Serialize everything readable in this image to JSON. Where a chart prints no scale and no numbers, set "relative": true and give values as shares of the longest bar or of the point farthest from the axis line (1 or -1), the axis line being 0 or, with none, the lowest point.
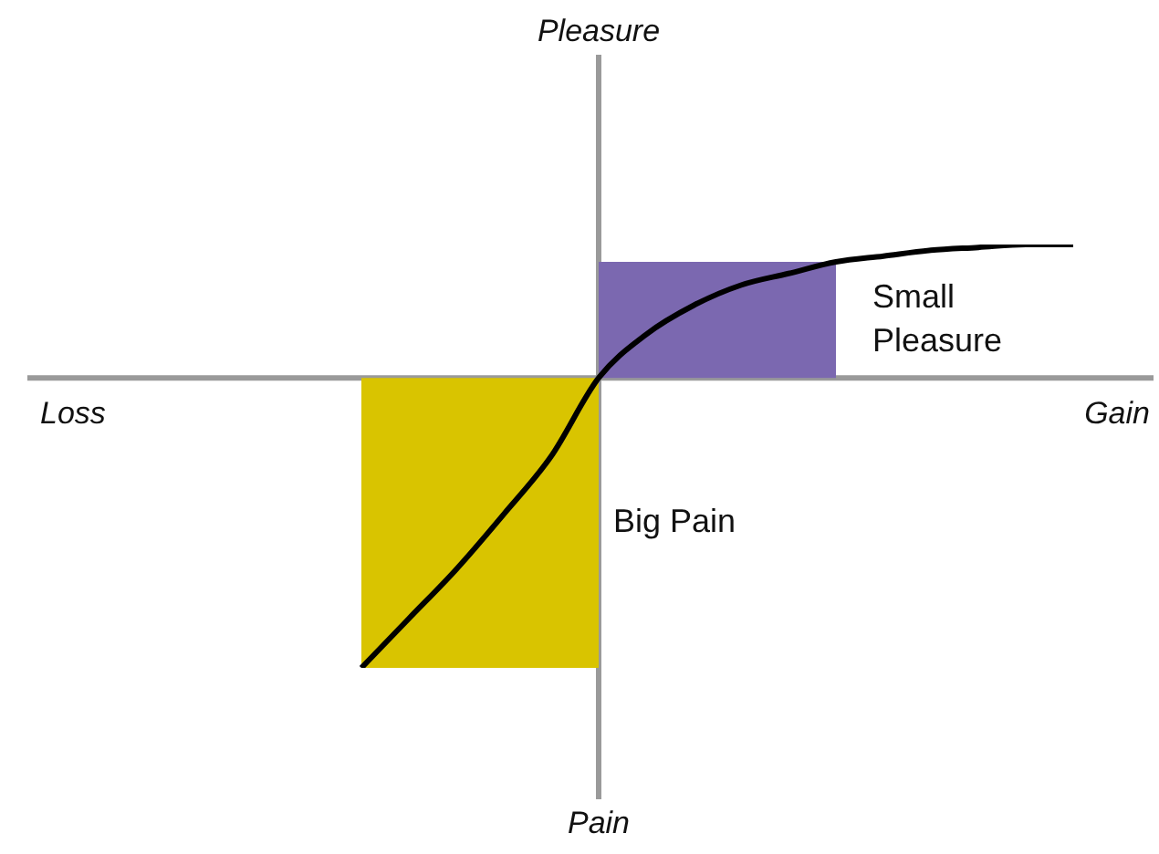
{
  "chart_data": {
    "type": "line",
    "relative": true,
    "legend": false,
    "marker": "none",
    "categories": [
      null,
      null,
      null,
      null,
      null,
      null,
      null,
      null,
      null,
      null,
      null,
      null,
      null,
      null,
      null,
      null
    ],
    "series": [
      {
        "type": "line",
        "color": "#000000",
        "values": [
          -1,
          -0.83,
          -0.66,
          -0.47,
          -0.27,
          0,
          0.15,
          0.25,
          0.32,
          0.36,
          0.4,
          0.42,
          0.44,
          0.45,
          0.46,
          0.46
        ]
      },
      {
        "type": "area",
        "color": "#d9c400",
        "values": [
          -1,
          -1,
          -1,
          -1,
          -1,
          -1,
          null,
          null,
          null,
          null,
          null,
          null,
          null,
          null,
          null,
          null
        ]
      },
      {
        "type": "area",
        "color": "#7b68b0",
        "values": [
          null,
          null,
          null,
          null,
          null,
          0.4,
          0.4,
          0.4,
          0.4,
          0.4,
          0.4,
          null,
          null,
          null,
          null,
          null
        ]
      }
    ],
    "annotations": [
      "Pleasure",
      "Pain",
      "Loss",
      "Gain",
      "Small Pleasure",
      "Big Pain"
    ]
  }
}
